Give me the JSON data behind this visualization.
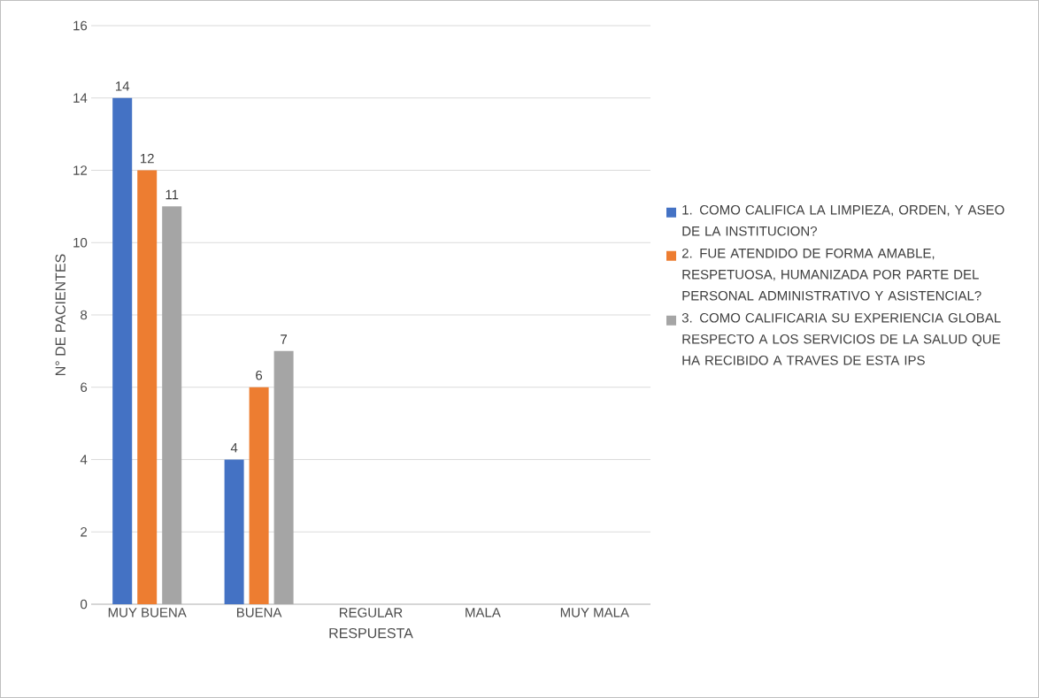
{
  "chart_data": {
    "type": "bar",
    "categories": [
      "MUY BUENA",
      "BUENA",
      "REGULAR",
      "MALA",
      "MUY MALA"
    ],
    "series": [
      {
        "name": "1. COMO CALIFICA LA LIMPIEZA, ORDEN, Y ASEO DE LA INSTITUCION?",
        "color": "#4472c4",
        "values": [
          14,
          4,
          0,
          0,
          0
        ],
        "value_labels": [
          "14",
          "4",
          null,
          null,
          null
        ]
      },
      {
        "name": "2. FUE ATENDIDO DE FORMA AMABLE, RESPETUOSA, HUMANIZADA POR PARTE DEL PERSONAL ADMINISTRATIVO Y ASISTENCIAL?",
        "color": "#ed7d31",
        "values": [
          12,
          6,
          0,
          0,
          0
        ],
        "value_labels": [
          "12",
          "6",
          null,
          null,
          null
        ]
      },
      {
        "name": "3. COMO CALIFICARIA SU EXPERIENCIA GLOBAL RESPECTO A LOS SERVICIOS DE LA SALUD QUE HA RECIBIDO A TRAVES DE ESTA IPS",
        "color": "#a5a5a5",
        "values": [
          11,
          7,
          0,
          0,
          0
        ],
        "value_labels": [
          "11",
          "7",
          null,
          null,
          null
        ]
      }
    ],
    "xlabel": "RESPUESTA",
    "ylabel": "N° DE PACIENTES",
    "ylim": [
      0,
      16
    ],
    "yticks": [
      0,
      2,
      4,
      6,
      8,
      10,
      12,
      14,
      16
    ],
    "grid": "y",
    "legend": "right"
  }
}
